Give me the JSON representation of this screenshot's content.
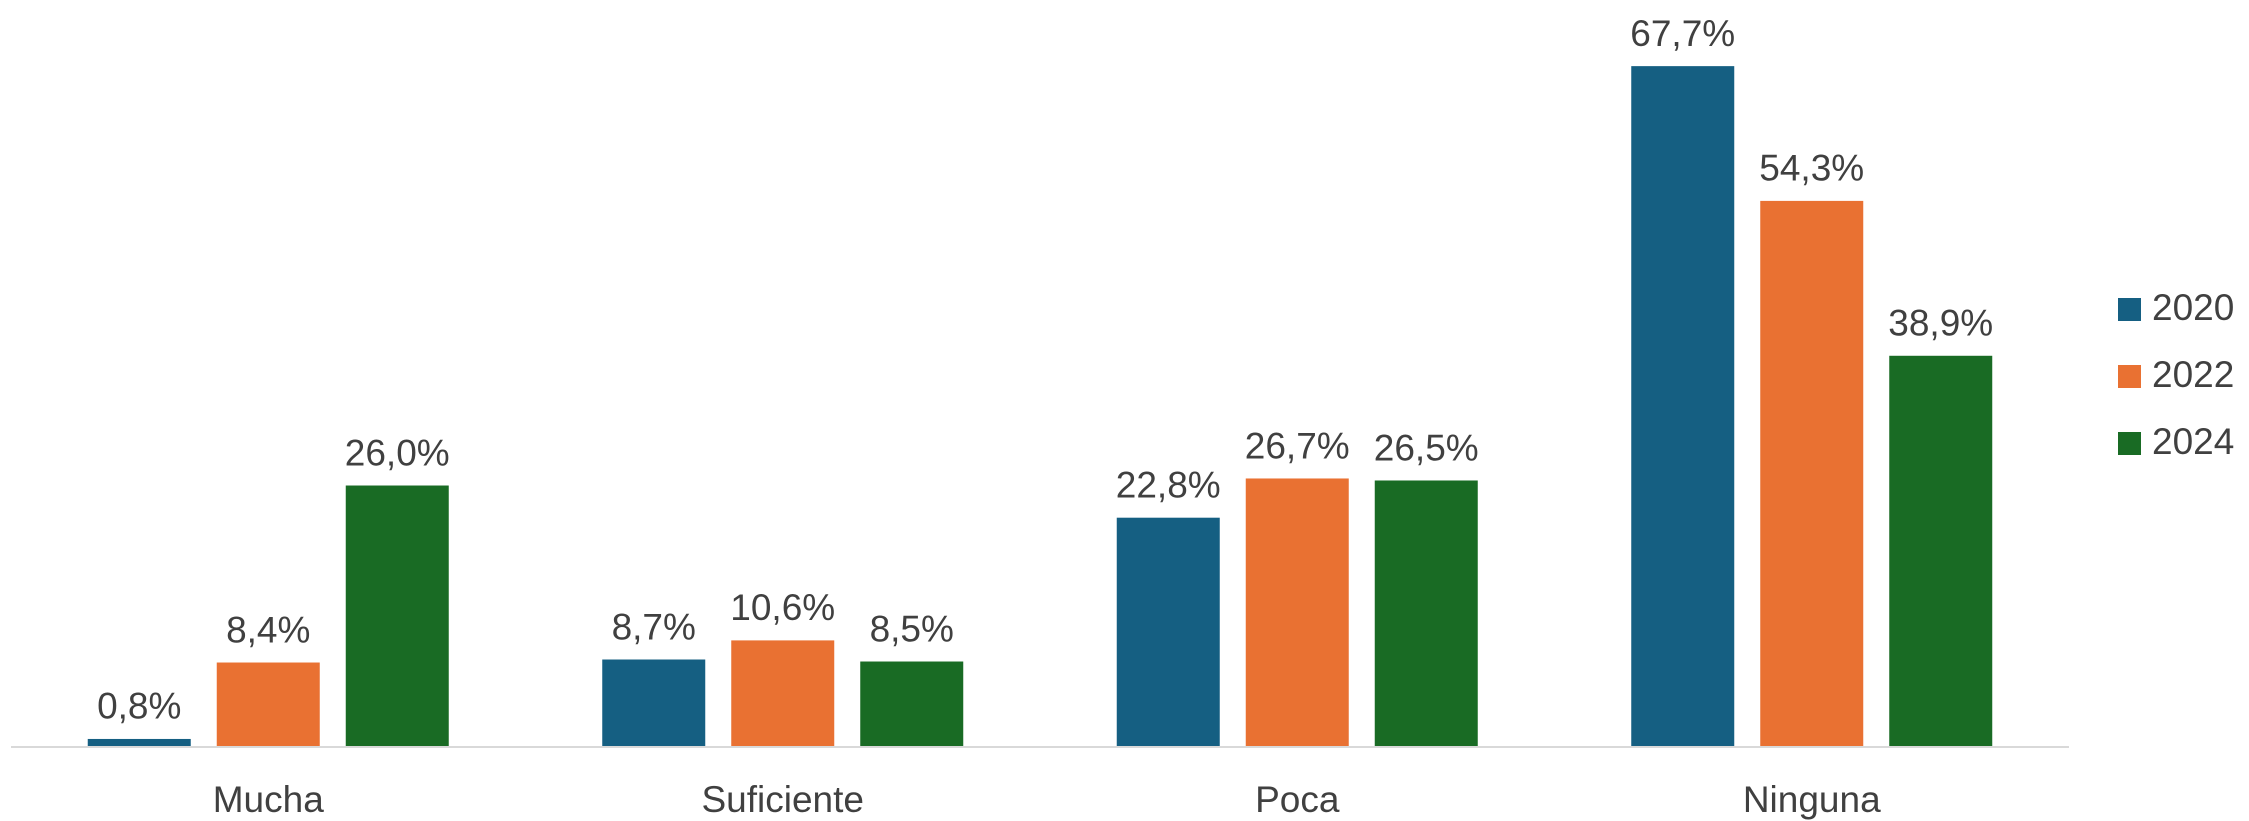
{
  "chart_data": {
    "type": "bar",
    "categories": [
      "Mucha",
      "Suficiente",
      "Poca",
      "Ninguna"
    ],
    "series": [
      {
        "name": "2020",
        "color": "#155F82",
        "values": [
          0.8,
          8.7,
          22.8,
          67.7
        ],
        "value_labels": [
          "0,8%",
          "8,7%",
          "22,8%",
          "67,7%"
        ]
      },
      {
        "name": "2022",
        "color": "#E97132",
        "values": [
          8.4,
          10.6,
          26.7,
          54.3
        ],
        "value_labels": [
          "8,4%",
          "10,6%",
          "26,7%",
          "54,3%"
        ]
      },
      {
        "name": "2024",
        "color": "#196B24",
        "values": [
          26.0,
          8.5,
          26.5,
          38.9
        ],
        "value_labels": [
          "26,0%",
          "8,5%",
          "26,5%",
          "38,9%"
        ]
      }
    ],
    "ylim": [
      0,
      70
    ],
    "legend": "right"
  }
}
